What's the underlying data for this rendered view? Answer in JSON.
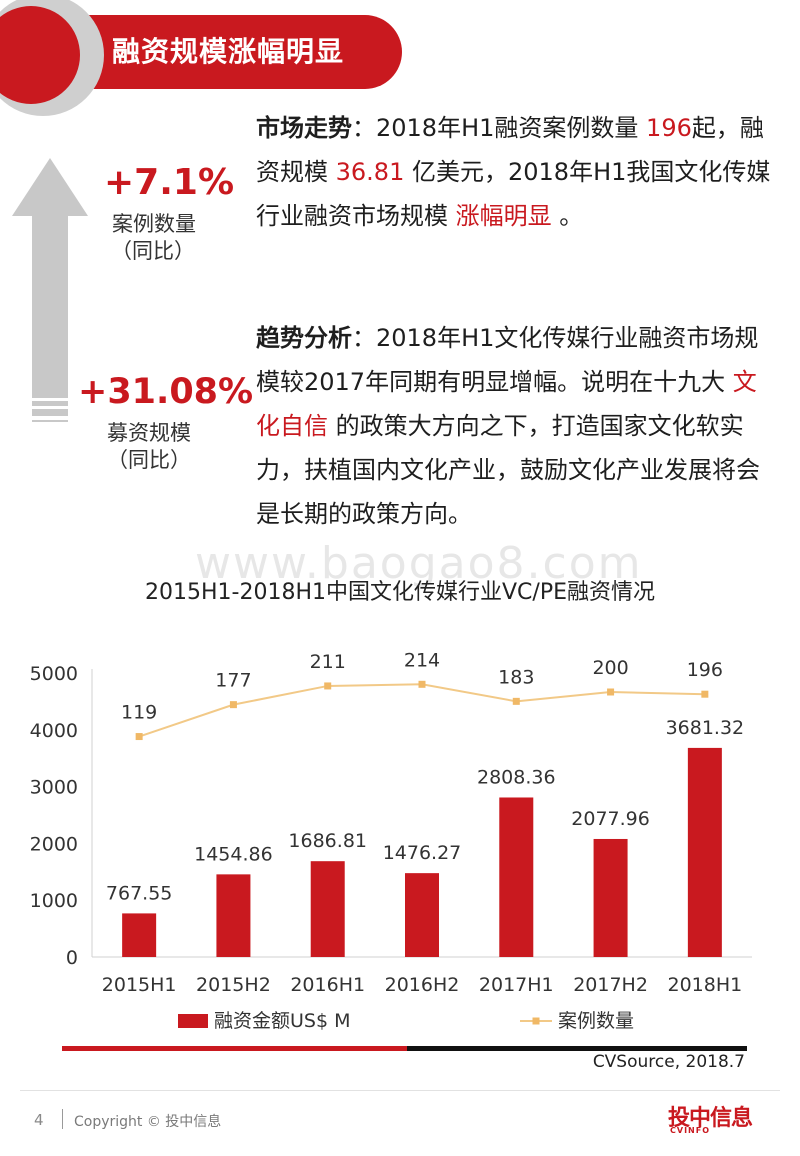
{
  "header": {
    "title": "融资规模涨幅明显"
  },
  "kpis": [
    {
      "value": "+7.1%",
      "label": "案例数量",
      "sublabel": "（同比）"
    },
    {
      "value": "+31.08%",
      "label": "募资规模",
      "sublabel": "（同比）"
    }
  ],
  "trend": {
    "heading": "市场走势",
    "sep": "：",
    "t1": "2018年H1融资案例数量",
    "count": "196",
    "t2": "起，融资规模",
    "amount": "36.81",
    "t3": "亿美元，2018年H1我国文化传媒行业融资市场规模",
    "highlight": "涨幅明显",
    "t4": "。"
  },
  "analysis": {
    "heading": "趋势分析",
    "sep": "：",
    "t1": "2018年H1文化传媒行业融资市场规模较2017年同期有明显增幅。说明在十九大",
    "highlight": "文化自信",
    "t2": "的政策大方向之下，打造国家文化软实力，扶植国内文化产业，鼓励文化产业发展将会是长期的政策方向。"
  },
  "watermark": "www.baogao8.com",
  "chart_data": {
    "type": "bar",
    "title": "2015H1-2018H1中国文化传媒行业VC/PE融资情况",
    "categories": [
      "2015H1",
      "2015H2",
      "2016H1",
      "2016H2",
      "2017H1",
      "2017H2",
      "2018H1"
    ],
    "series": [
      {
        "name": "融资金额US$ M",
        "type": "bar",
        "color": "#c9191f",
        "values": [
          767.55,
          1454.86,
          1686.81,
          1476.27,
          2808.36,
          2077.96,
          3681.32
        ]
      },
      {
        "name": "案例数量",
        "type": "line",
        "color": "#f2c987",
        "values": [
          119,
          177,
          211,
          214,
          183,
          200,
          196
        ]
      }
    ],
    "ylim": [
      0,
      5000
    ],
    "yticks": [
      0,
      1000,
      2000,
      3000,
      4000,
      5000
    ],
    "grid": false,
    "legend": "bottom"
  },
  "source": "CVSource, 2018.7",
  "footer": {
    "page": "4",
    "copyright": "Copyright © 投中信息",
    "logo": "投中信息",
    "logo_sub": "CVINFO"
  },
  "colors": {
    "accent": "#c9191f",
    "line": "#f2c987",
    "arrow": "#c8c8c8"
  }
}
